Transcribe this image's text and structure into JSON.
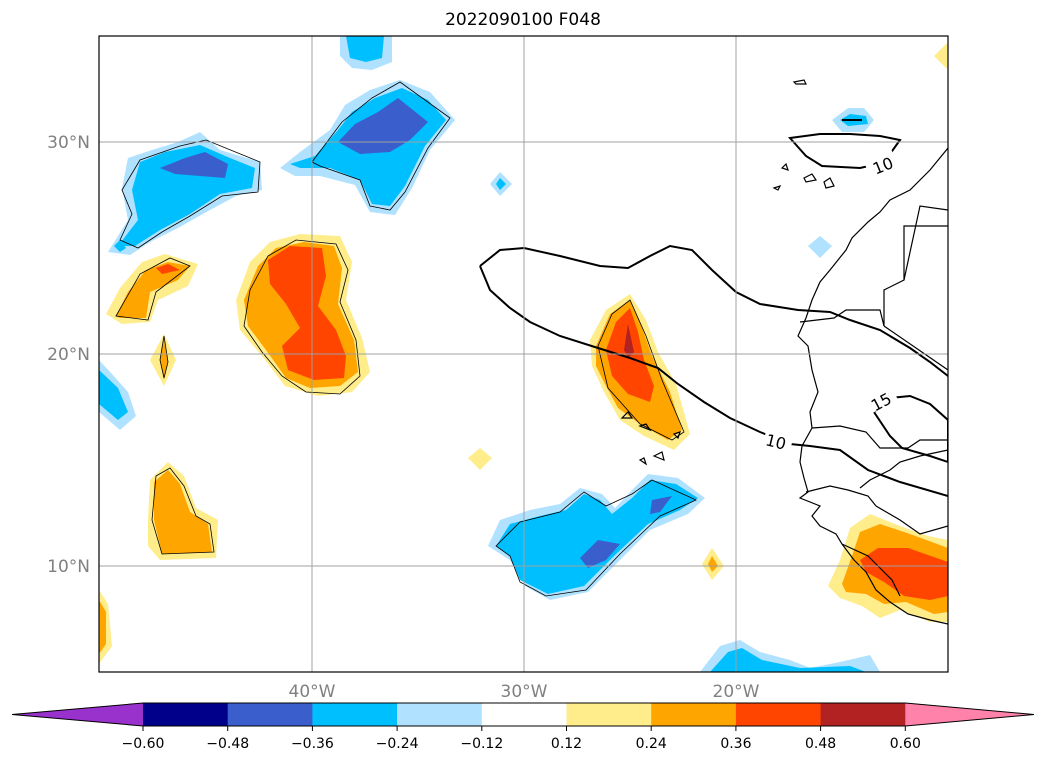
{
  "map": {
    "title": "2022090100 F048",
    "lat_labels": [
      "30°N",
      "20°N",
      "10°N"
    ],
    "lon_labels": [
      "40°W",
      "30°W",
      "20°W"
    ],
    "grid_color": "#a0a0a0",
    "contour_labels": [
      "10",
      "15",
      "10"
    ]
  },
  "colorbar": {
    "ticks": [
      "−0.60",
      "−0.48",
      "−0.36",
      "−0.24",
      "−0.12",
      "0.12",
      "0.24",
      "0.36",
      "0.48",
      "0.60"
    ],
    "colors": [
      "#9932cc",
      "#00008b",
      "#3a5fcd",
      "#00bfff",
      "#b0e2ff",
      "#ffffff",
      "#ffec8b",
      "#ffa500",
      "#ff4500",
      "#b22222",
      "#ff82ab"
    ]
  },
  "palette": {
    "lightblue": "#b0e2ff",
    "cyan": "#00bfff",
    "blue": "#3a5fcd",
    "yellow": "#ffec8b",
    "orange": "#ffa500",
    "red": "#ff4500",
    "darkred": "#b22222"
  }
}
